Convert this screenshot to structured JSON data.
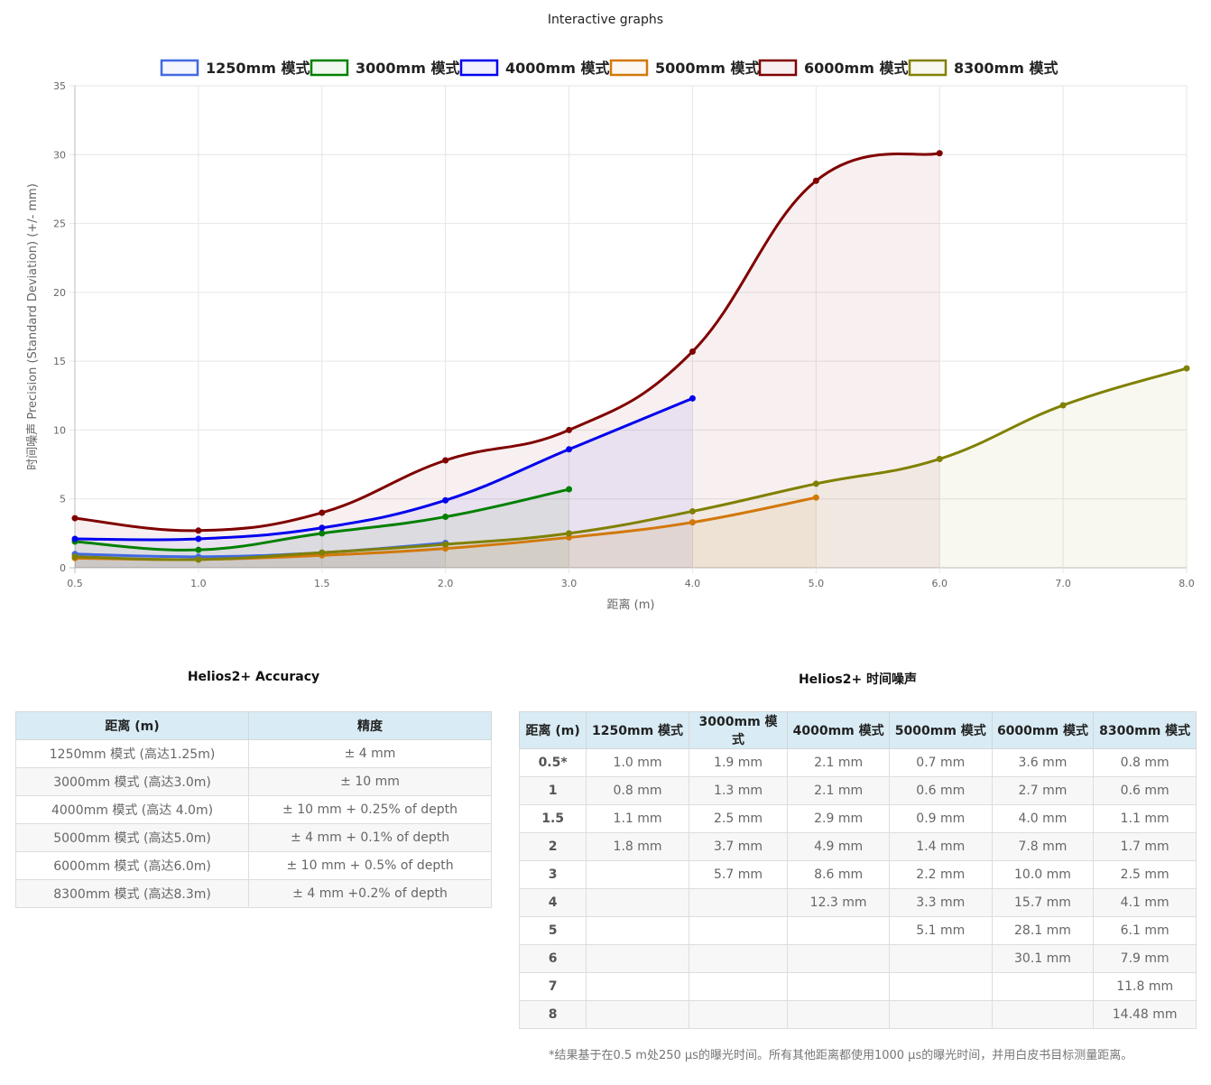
{
  "header": {
    "title": "Interactive graphs"
  },
  "chart_data": {
    "type": "line",
    "title": "",
    "xlabel": "距离 (m)",
    "ylabel": "时间噪声 Precision (Standard Deviation) (+/- mm)",
    "xlim": [
      0.5,
      8.0
    ],
    "ylim": [
      0,
      35
    ],
    "x_ticks": [
      "0.5",
      "1.0",
      "1.5",
      "2.0",
      "3.0",
      "4.0",
      "5.0",
      "6.0",
      "7.0",
      "8.0"
    ],
    "y_ticks": [
      0,
      5,
      10,
      15,
      20,
      25,
      30,
      35
    ],
    "grid": true,
    "legend_position": "top",
    "series": [
      {
        "name": "1250mm 模式",
        "color": "#4169e1",
        "x": [
          0.5,
          1.0,
          1.5,
          2.0
        ],
        "values": [
          1.0,
          0.8,
          1.1,
          1.8
        ]
      },
      {
        "name": "3000mm 模式",
        "color": "#008000",
        "x": [
          0.5,
          1.0,
          1.5,
          2.0,
          3.0
        ],
        "values": [
          1.9,
          1.3,
          2.5,
          3.7,
          5.7
        ]
      },
      {
        "name": "4000mm 模式",
        "color": "#0000ee",
        "x": [
          0.5,
          1.0,
          1.5,
          2.0,
          3.0,
          4.0
        ],
        "values": [
          2.1,
          2.1,
          2.9,
          4.9,
          8.6,
          12.3
        ]
      },
      {
        "name": "5000mm 模式",
        "color": "#d2780a",
        "x": [
          0.5,
          1.0,
          1.5,
          2.0,
          3.0,
          4.0,
          5.0
        ],
        "values": [
          0.7,
          0.6,
          0.9,
          1.4,
          2.2,
          3.3,
          5.1
        ]
      },
      {
        "name": "6000mm 模式",
        "color": "#800000",
        "x": [
          0.5,
          1.0,
          1.5,
          2.0,
          3.0,
          4.0,
          5.0,
          6.0
        ],
        "values": [
          3.6,
          2.7,
          4.0,
          7.8,
          10.0,
          15.7,
          28.1,
          30.1
        ]
      },
      {
        "name": "8300mm 模式",
        "color": "#808000",
        "x": [
          0.5,
          1.0,
          1.5,
          2.0,
          3.0,
          4.0,
          5.0,
          6.0,
          7.0,
          8.0
        ],
        "values": [
          0.8,
          0.6,
          1.1,
          1.7,
          2.5,
          4.1,
          6.1,
          7.9,
          11.8,
          14.48
        ]
      }
    ]
  },
  "accuracy_table": {
    "title": "Helios2+ Accuracy",
    "headers": [
      "距离 (m)",
      "精度"
    ],
    "rows": [
      [
        "1250mm 模式 (高达1.25m)",
        "± 4 mm"
      ],
      [
        "3000mm 模式 (高达3.0m)",
        "± 10 mm"
      ],
      [
        "4000mm 模式 (高达 4.0m)",
        "± 10 mm + 0.25% of depth"
      ],
      [
        "5000mm 模式 (高达5.0m)",
        "± 4 mm + 0.1% of depth"
      ],
      [
        "6000mm 模式 (高达6.0m)",
        "± 10 mm + 0.5% of depth"
      ],
      [
        "8300mm 模式 (高达8.3m)",
        "± 4 mm +0.2% of depth"
      ]
    ]
  },
  "noise_table": {
    "title": "Helios2+ 时间噪声",
    "headers": [
      "距离 (m)",
      "1250mm 模式",
      "3000mm 模式",
      "4000mm 模式",
      "5000mm 模式",
      "6000mm 模式",
      "8300mm 模式"
    ],
    "rows": [
      [
        "0.5*",
        "1.0 mm",
        "1.9 mm",
        "2.1 mm",
        "0.7 mm",
        "3.6 mm",
        "0.8 mm"
      ],
      [
        "1",
        "0.8 mm",
        "1.3 mm",
        "2.1 mm",
        "0.6 mm",
        "2.7 mm",
        "0.6 mm"
      ],
      [
        "1.5",
        "1.1 mm",
        "2.5 mm",
        "2.9 mm",
        "0.9 mm",
        "4.0 mm",
        "1.1 mm"
      ],
      [
        "2",
        "1.8 mm",
        "3.7 mm",
        "4.9 mm",
        "1.4 mm",
        "7.8 mm",
        "1.7 mm"
      ],
      [
        "3",
        "",
        "5.7 mm",
        "8.6 mm",
        "2.2 mm",
        "10.0 mm",
        "2.5 mm"
      ],
      [
        "4",
        "",
        "",
        "12.3 mm",
        "3.3 mm",
        "15.7 mm",
        "4.1 mm"
      ],
      [
        "5",
        "",
        "",
        "",
        "5.1 mm",
        "28.1 mm",
        "6.1 mm"
      ],
      [
        "6",
        "",
        "",
        "",
        "",
        "30.1 mm",
        "7.9 mm"
      ],
      [
        "7",
        "",
        "",
        "",
        "",
        "",
        "11.8 mm"
      ],
      [
        "8",
        "",
        "",
        "",
        "",
        "",
        "14.48 mm"
      ]
    ]
  },
  "footnote": "*结果基于在0.5 m处250 µs的曝光时间。所有其他距离都使用1000 µs的曝光时间，并用白皮书目标测量距离。"
}
